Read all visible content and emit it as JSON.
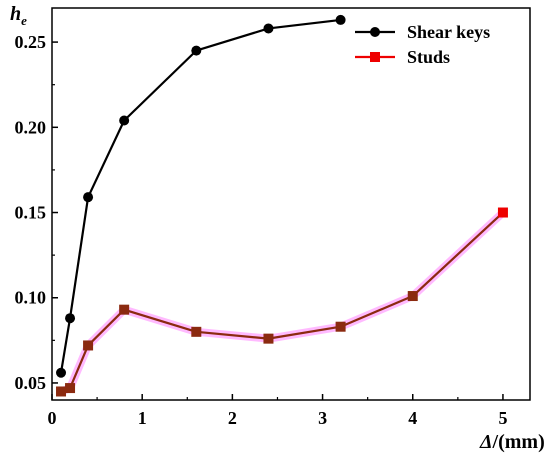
{
  "chart_data": {
    "type": "line",
    "title": "",
    "xlabel": {
      "symbol": "Δ",
      "suffix": "/(mm)"
    },
    "ylabel": {
      "base": "h",
      "sub": "e"
    },
    "xlim": [
      0,
      5.3
    ],
    "ylim": [
      0.04,
      0.27
    ],
    "x_ticks": [
      0,
      1,
      2,
      3,
      4,
      5
    ],
    "y_ticks": [
      0.05,
      0.1,
      0.15,
      0.2,
      0.25
    ],
    "y_tick_labels": [
      "0.05",
      "0.10",
      "0.15",
      "0.20",
      "0.25"
    ],
    "grid": false,
    "legend_position": "top-right",
    "series": [
      {
        "name": "Shear keys",
        "color": "#000000",
        "marker": "circle",
        "x": [
          0.1,
          0.2,
          0.4,
          0.8,
          1.6,
          2.4,
          3.2
        ],
        "y": [
          0.056,
          0.088,
          0.159,
          0.204,
          0.245,
          0.258,
          0.263
        ]
      },
      {
        "name": "Studs",
        "color": "#ee0000",
        "line_color": "#8b2a10",
        "glow_color": "#ff66ff",
        "marker": "square",
        "x": [
          0.1,
          0.2,
          0.4,
          0.8,
          1.6,
          2.4,
          3.2,
          4.0,
          5.0
        ],
        "y": [
          0.045,
          0.047,
          0.072,
          0.093,
          0.08,
          0.076,
          0.083,
          0.101,
          0.15
        ]
      }
    ]
  }
}
